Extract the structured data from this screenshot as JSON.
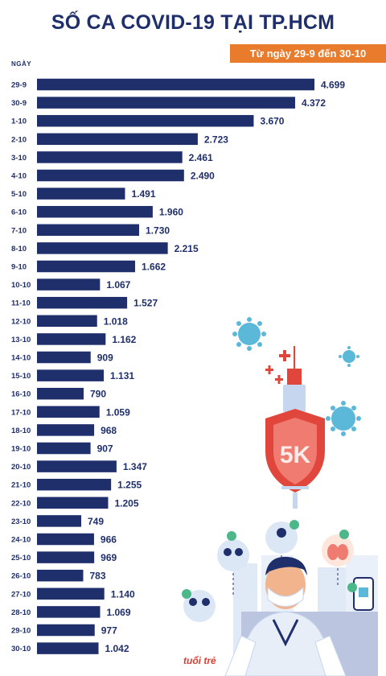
{
  "title": "SỐ CA COVID-19 TẠI TP.HCM",
  "subtitle": "Từ ngày 29-9 đến 30-10",
  "logo_text": "tuổi trẻ",
  "decor": {
    "shield_text": "5K"
  },
  "colors": {
    "bar": "#1f2f6b",
    "badge": "#e97b2c",
    "virus": "#5bb8d9",
    "shield": "#e0463c"
  },
  "chart_data": {
    "type": "bar",
    "orientation": "horizontal",
    "xlabel": "",
    "ylabel": "NGÀY",
    "xlim": [
      0,
      4699
    ],
    "categories": [
      "29-9",
      "30-9",
      "1-10",
      "2-10",
      "3-10",
      "4-10",
      "5-10",
      "6-10",
      "7-10",
      "8-10",
      "9-10",
      "10-10",
      "11-10",
      "12-10",
      "13-10",
      "14-10",
      "15-10",
      "16-10",
      "17-10",
      "18-10",
      "19-10",
      "20-10",
      "21-10",
      "22-10",
      "23-10",
      "24-10",
      "25-10",
      "26-10",
      "27-10",
      "28-10",
      "29-10",
      "30-10"
    ],
    "values": [
      4699,
      4372,
      3670,
      2723,
      2461,
      2490,
      1491,
      1960,
      1730,
      2215,
      1662,
      1067,
      1527,
      1018,
      1162,
      909,
      1131,
      790,
      1059,
      968,
      907,
      1347,
      1255,
      1205,
      749,
      966,
      969,
      783,
      1140,
      1069,
      977,
      1042
    ],
    "value_labels": [
      "4.699",
      "4.372",
      "3.670",
      "2.723",
      "2.461",
      "2.490",
      "1.491",
      "1.960",
      "1.730",
      "2.215",
      "1.662",
      "1.067",
      "1.527",
      "1.018",
      "1.162",
      "909",
      "1.131",
      "790",
      "1.059",
      "968",
      "907",
      "1.347",
      "1.255",
      "1.205",
      "749",
      "966",
      "969",
      "783",
      "1.140",
      "1.069",
      "977",
      "1.042"
    ]
  }
}
